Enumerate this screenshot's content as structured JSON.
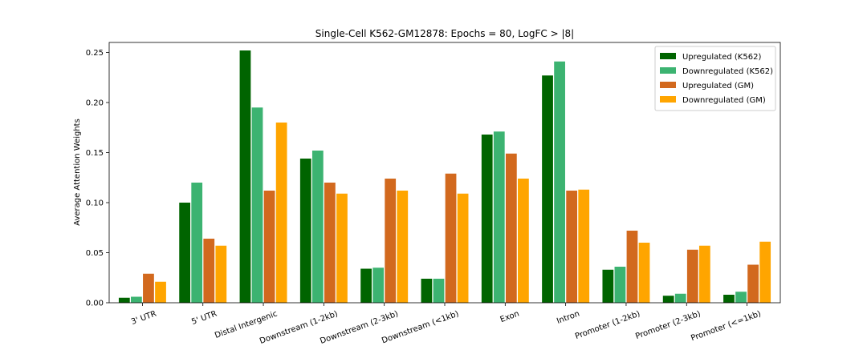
{
  "chart_data": {
    "type": "bar",
    "title": "Single-Cell K562-GM12878: Epochs = 80, LogFC > |8|",
    "xlabel": "",
    "ylabel": "Average Attention Weights",
    "ylim": [
      0,
      0.26
    ],
    "yticks": [
      "0.00",
      "0.05",
      "0.10",
      "0.15",
      "0.20",
      "0.25"
    ],
    "grid": false,
    "legend_position": "top-right",
    "categories": [
      "3' UTR",
      "5' UTR",
      "Distal Intergenic",
      "Downstream (1-2kb)",
      "Downstream (2-3kb)",
      "Downstream (<1kb)",
      "Exon",
      "Intron",
      "Promoter (1-2kb)",
      "Promoter (2-3kb)",
      "Promoter (<=1kb)"
    ],
    "series": [
      {
        "name": "Upregulated (K562)",
        "color": "#006400",
        "values": [
          0.005,
          0.1,
          0.252,
          0.144,
          0.034,
          0.024,
          0.168,
          0.227,
          0.033,
          0.007,
          0.008
        ]
      },
      {
        "name": "Downregulated (K562)",
        "color": "#3CB371",
        "values": [
          0.006,
          0.12,
          0.195,
          0.152,
          0.035,
          0.024,
          0.171,
          0.241,
          0.036,
          0.009,
          0.011
        ]
      },
      {
        "name": "Upregulated (GM)",
        "color": "#D2691E",
        "values": [
          0.029,
          0.064,
          0.112,
          0.12,
          0.124,
          0.129,
          0.149,
          0.112,
          0.072,
          0.053,
          0.038
        ]
      },
      {
        "name": "Downregulated (GM)",
        "color": "#FFA500",
        "values": [
          0.021,
          0.057,
          0.18,
          0.109,
          0.112,
          0.109,
          0.124,
          0.113,
          0.06,
          0.057,
          0.061
        ]
      }
    ]
  }
}
